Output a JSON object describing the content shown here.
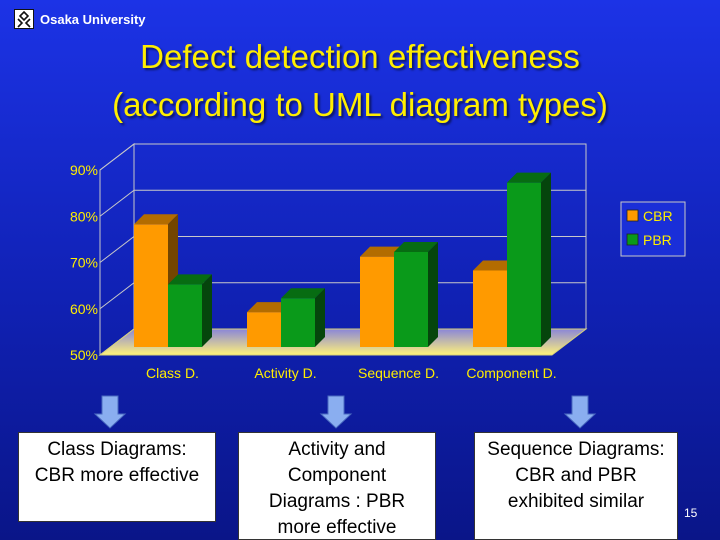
{
  "header": {
    "org": "Osaka University"
  },
  "title": {
    "line1": "Defect detection effectiveness",
    "line2": "(according to UML diagram types)"
  },
  "chart_data": {
    "type": "bar",
    "categories": [
      "Class D.",
      "Activity D.",
      "Sequence D.",
      "Component D."
    ],
    "series": [
      {
        "name": "CBR",
        "values": [
          80,
          61,
          73,
          70
        ],
        "color": "#ff9a00"
      },
      {
        "name": "PBR",
        "values": [
          67,
          64,
          74,
          89
        ],
        "color": "#0a9a1a"
      }
    ],
    "ylim": [
      50,
      90
    ],
    "yticks": [
      "50%",
      "60%",
      "70%",
      "80%",
      "90%"
    ],
    "tick_values": [
      50,
      60,
      70,
      80,
      90
    ],
    "grid": true,
    "legend_position": "right"
  },
  "notes": [
    {
      "text": "Class Diagrams: CBR more effective"
    },
    {
      "text": "Activity and Component Diagrams : PBR more effective"
    },
    {
      "text": "Sequence Diagrams: CBR and PBR exhibited similar"
    }
  ],
  "page_number": "15",
  "colors": {
    "title": "#ffee00",
    "arrow": "#8aaef0"
  }
}
